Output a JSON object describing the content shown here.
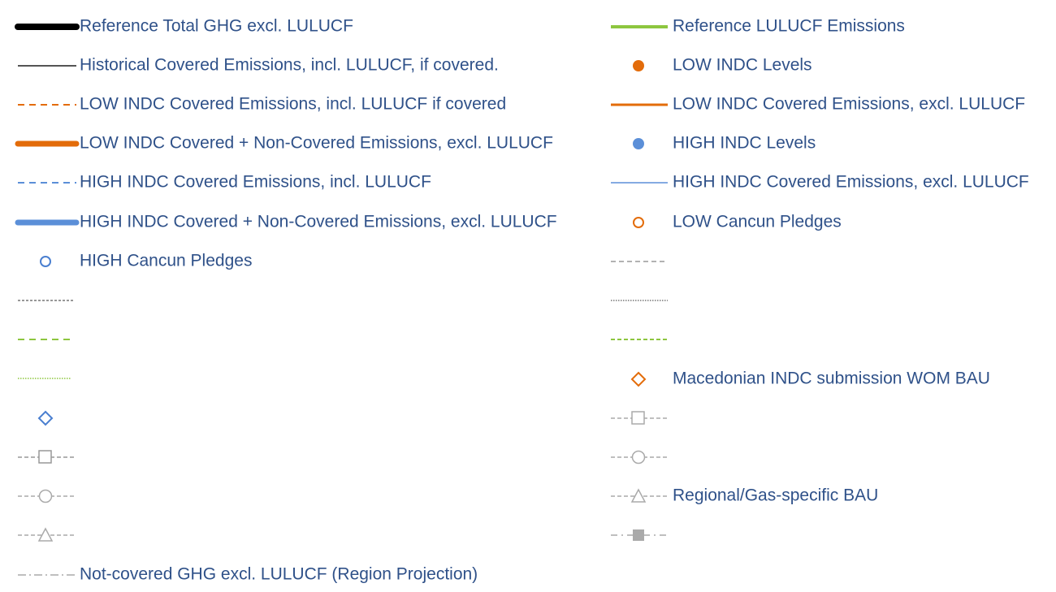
{
  "legend": {
    "left": [
      "Reference Total GHG excl. LULUCF",
      "Historical Covered Emissions, incl. LULUCF, if covered.",
      "LOW INDC Covered Emissions, incl. LULUCF if covered",
      "LOW INDC Covered + Non-Covered Emissions, excl. LULUCF",
      "HIGH INDC Covered Emissions, incl. LULUCF",
      "HIGH INDC Covered + Non-Covered Emissions, excl. LULUCF",
      "HIGH Cancun Pledges",
      "Not-covered GHG excl. LULUCF (Region Projection)"
    ],
    "right": [
      "Reference LULUCF Emissions",
      "LOW INDC Levels",
      "LOW INDC Covered Emissions, excl. LULUCF",
      "HIGH INDC Levels",
      "HIGH INDC Covered Emissions, excl. LULUCF",
      "LOW Cancun Pledges",
      "Macedonian INDC submission WOM BAU",
      "Regional/Gas-specific BAU"
    ]
  }
}
